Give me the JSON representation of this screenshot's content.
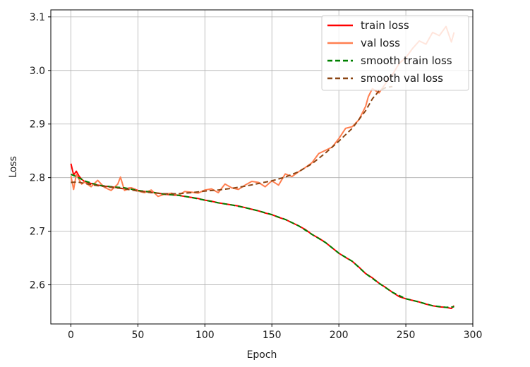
{
  "chart_data": {
    "type": "line",
    "title": "",
    "xlabel": "Epoch",
    "ylabel": "Loss",
    "xlim": [
      -15,
      300
    ],
    "ylim": [
      2.527,
      3.113
    ],
    "xticks": [
      0,
      50,
      100,
      150,
      200,
      250,
      300
    ],
    "yticks": [
      2.6,
      2.7,
      2.8,
      2.9,
      3.0,
      3.1
    ],
    "xtick_labels": [
      "0",
      "50",
      "100",
      "150",
      "200",
      "250",
      "300"
    ],
    "ytick_labels": [
      "2.6",
      "2.7",
      "2.8",
      "2.9",
      "3.0",
      "3.1"
    ],
    "grid": true,
    "legend_position": "top-right",
    "series": [
      {
        "name": "train loss",
        "color": "#ff0000",
        "style": "solid",
        "x": [
          0,
          2,
          4,
          6,
          8,
          10,
          15,
          20,
          25,
          30,
          35,
          40,
          45,
          50,
          55,
          60,
          65,
          70,
          75,
          80,
          85,
          90,
          95,
          100,
          105,
          110,
          115,
          120,
          125,
          130,
          135,
          140,
          145,
          150,
          155,
          160,
          165,
          170,
          175,
          180,
          185,
          190,
          195,
          200,
          205,
          210,
          215,
          220,
          225,
          230,
          235,
          240,
          245,
          250,
          255,
          260,
          265,
          270,
          275,
          280,
          284,
          286
        ],
        "y": [
          2.826,
          2.805,
          2.812,
          2.803,
          2.797,
          2.793,
          2.789,
          2.786,
          2.784,
          2.783,
          2.781,
          2.779,
          2.781,
          2.776,
          2.774,
          2.773,
          2.771,
          2.769,
          2.768,
          2.767,
          2.765,
          2.763,
          2.761,
          2.758,
          2.756,
          2.753,
          2.751,
          2.749,
          2.747,
          2.744,
          2.741,
          2.738,
          2.734,
          2.731,
          2.726,
          2.722,
          2.716,
          2.71,
          2.703,
          2.694,
          2.687,
          2.679,
          2.669,
          2.659,
          2.651,
          2.644,
          2.633,
          2.621,
          2.613,
          2.603,
          2.595,
          2.586,
          2.578,
          2.574,
          2.571,
          2.568,
          2.564,
          2.561,
          2.559,
          2.558,
          2.556,
          2.561
        ]
      },
      {
        "name": "val loss",
        "color": "#ff7f50",
        "style": "solid",
        "x": [
          0,
          2,
          4,
          6,
          8,
          10,
          15,
          20,
          25,
          30,
          35,
          37,
          40,
          45,
          50,
          55,
          60,
          65,
          70,
          75,
          80,
          85,
          90,
          95,
          100,
          105,
          110,
          115,
          120,
          125,
          130,
          135,
          140,
          145,
          150,
          155,
          160,
          165,
          170,
          175,
          180,
          185,
          190,
          195,
          200,
          205,
          210,
          215,
          220,
          222,
          225,
          230,
          235,
          240,
          245,
          250,
          255,
          260,
          265,
          270,
          275,
          280,
          284,
          286
        ],
        "y": [
          2.803,
          2.778,
          2.806,
          2.797,
          2.788,
          2.792,
          2.783,
          2.795,
          2.782,
          2.776,
          2.788,
          2.801,
          2.776,
          2.781,
          2.775,
          2.772,
          2.777,
          2.765,
          2.769,
          2.771,
          2.767,
          2.774,
          2.773,
          2.771,
          2.777,
          2.779,
          2.772,
          2.788,
          2.781,
          2.778,
          2.786,
          2.793,
          2.791,
          2.783,
          2.794,
          2.786,
          2.807,
          2.802,
          2.811,
          2.819,
          2.828,
          2.845,
          2.851,
          2.857,
          2.873,
          2.892,
          2.895,
          2.908,
          2.933,
          2.951,
          2.966,
          2.958,
          2.976,
          2.992,
          3.013,
          3.024,
          3.041,
          3.055,
          3.049,
          3.071,
          3.065,
          3.082,
          3.053,
          3.071
        ]
      },
      {
        "name": "smooth train loss",
        "color": "#008000",
        "style": "dashed",
        "x": [
          0,
          5,
          10,
          20,
          30,
          40,
          50,
          60,
          70,
          80,
          90,
          100,
          110,
          120,
          130,
          140,
          150,
          160,
          170,
          180,
          190,
          200,
          210,
          220,
          230,
          240,
          250,
          260,
          270,
          280,
          286
        ],
        "y": [
          2.806,
          2.801,
          2.794,
          2.786,
          2.783,
          2.781,
          2.776,
          2.773,
          2.769,
          2.767,
          2.763,
          2.758,
          2.753,
          2.749,
          2.744,
          2.738,
          2.731,
          2.722,
          2.71,
          2.694,
          2.679,
          2.659,
          2.644,
          2.621,
          2.603,
          2.586,
          2.574,
          2.568,
          2.561,
          2.558,
          2.559
        ]
      },
      {
        "name": "smooth val loss",
        "color": "#8b4513",
        "style": "dashed",
        "x": [
          0,
          5,
          10,
          20,
          30,
          40,
          50,
          60,
          70,
          80,
          90,
          100,
          110,
          120,
          130,
          140,
          150,
          160,
          170,
          180,
          190,
          200,
          210,
          220,
          225,
          230,
          235,
          240
        ],
        "y": [
          2.791,
          2.792,
          2.789,
          2.785,
          2.782,
          2.779,
          2.775,
          2.772,
          2.77,
          2.77,
          2.772,
          2.775,
          2.777,
          2.78,
          2.784,
          2.789,
          2.794,
          2.801,
          2.811,
          2.826,
          2.846,
          2.868,
          2.892,
          2.925,
          2.947,
          2.962,
          2.968,
          2.97
        ]
      }
    ]
  }
}
